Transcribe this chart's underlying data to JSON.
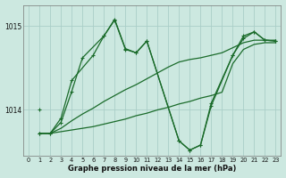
{
  "xlabel": "Graphe pression niveau de la mer (hPa)",
  "bg_color": "#cce8e0",
  "grid_color": "#aacec8",
  "line_color": "#1a6b2a",
  "yticks": [
    1014,
    1015
  ],
  "ylim": [
    1013.45,
    1015.25
  ],
  "xlim": [
    -0.5,
    23.5
  ],
  "xticks": [
    0,
    1,
    2,
    3,
    4,
    5,
    6,
    7,
    8,
    9,
    10,
    11,
    12,
    13,
    14,
    15,
    16,
    17,
    18,
    19,
    20,
    21,
    22,
    23
  ],
  "flat1_x": [
    1,
    2,
    3,
    4,
    5,
    6,
    7,
    8,
    9,
    10,
    11,
    12,
    13,
    14,
    15,
    16,
    17,
    18,
    19,
    20,
    21,
    22,
    23
  ],
  "flat1_y": [
    1013.72,
    1013.72,
    1013.74,
    1013.76,
    1013.78,
    1013.8,
    1013.83,
    1013.86,
    1013.89,
    1013.93,
    1013.96,
    1014.0,
    1014.03,
    1014.07,
    1014.1,
    1014.14,
    1014.17,
    1014.21,
    1014.55,
    1014.72,
    1014.78,
    1014.8,
    1014.8
  ],
  "flat2_x": [
    1,
    2,
    3,
    4,
    5,
    6,
    7,
    8,
    9,
    10,
    11,
    12,
    13,
    14,
    15,
    16,
    17,
    18,
    19,
    20,
    21,
    22,
    23
  ],
  "flat2_y": [
    1013.72,
    1013.72,
    1013.78,
    1013.87,
    1013.95,
    1014.02,
    1014.1,
    1014.17,
    1014.24,
    1014.3,
    1014.37,
    1014.44,
    1014.51,
    1014.57,
    1014.6,
    1014.62,
    1014.65,
    1014.68,
    1014.74,
    1014.8,
    1014.83,
    1014.83,
    1014.83
  ],
  "zig1_x": [
    1,
    2,
    3,
    4,
    5,
    7,
    8,
    9,
    10,
    11,
    14,
    15,
    16,
    17,
    19,
    20,
    21,
    22,
    23
  ],
  "zig1_y": [
    1013.72,
    1013.72,
    1013.85,
    1014.22,
    1014.62,
    1014.88,
    1015.08,
    1014.73,
    1014.68,
    1014.82,
    1013.63,
    1013.52,
    1013.58,
    1014.08,
    1014.65,
    1014.88,
    1014.93,
    1014.83,
    1014.82
  ],
  "zig2_x": [
    1,
    2,
    3,
    4,
    6,
    7,
    8,
    9,
    10,
    11,
    14,
    15,
    16,
    17,
    19,
    20,
    21,
    22,
    23
  ],
  "zig2_y": [
    1013.72,
    1013.72,
    1013.9,
    1014.35,
    1014.65,
    1014.88,
    1015.07,
    1014.72,
    1014.68,
    1014.82,
    1013.63,
    1013.52,
    1013.58,
    1014.05,
    1014.65,
    1014.85,
    1014.93,
    1014.83,
    1014.82
  ],
  "start_x": [
    1
  ],
  "start_y": [
    1014.0
  ]
}
